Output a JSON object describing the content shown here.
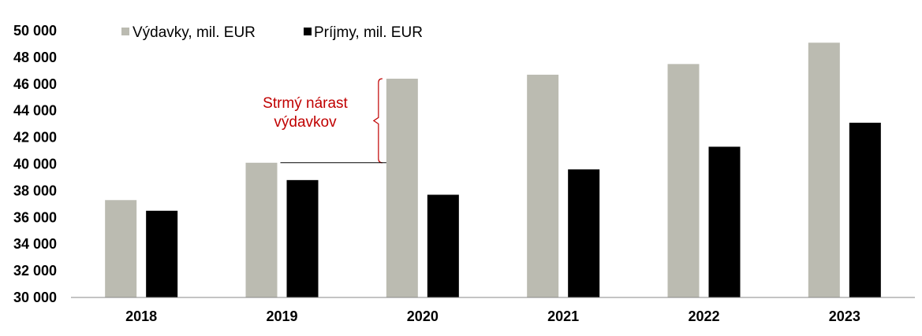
{
  "chart_data": {
    "type": "bar",
    "categories": [
      "2018",
      "2019",
      "2020",
      "2021",
      "2022",
      "2023"
    ],
    "series": [
      {
        "name": "Výdavky, mil. EUR",
        "color": "#bbbbb1",
        "values": [
          37300,
          40100,
          46400,
          46700,
          47500,
          49100
        ]
      },
      {
        "name": "Príjmy, mil. EUR",
        "color": "#000000",
        "values": [
          36500,
          38800,
          37700,
          39600,
          41300,
          43100
        ]
      }
    ],
    "ylim": [
      30000,
      50000
    ],
    "ytick_step": 2000,
    "ytick_labels": [
      "30 000",
      "32 000",
      "34 000",
      "36 000",
      "38 000",
      "40 000",
      "42 000",
      "44 000",
      "46 000",
      "48 000",
      "50 000"
    ],
    "grid": false,
    "legend_placement": "top-left",
    "annotation": {
      "lines": [
        "Strmý nárast",
        "výdavkov"
      ],
      "color": "#c00000",
      "from_value": 40100,
      "to_value": 46400
    },
    "title": "",
    "xlabel": "",
    "ylabel": ""
  }
}
